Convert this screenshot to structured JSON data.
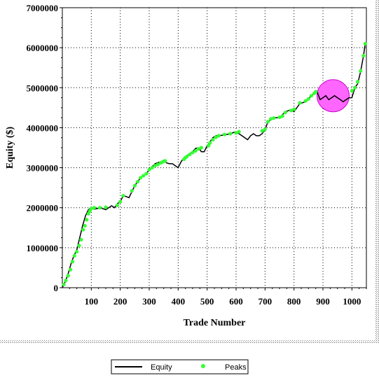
{
  "chart_data": {
    "type": "line",
    "title": "",
    "xlabel": "Trade Number",
    "ylabel": "Equity ($)",
    "xlim": [
      0,
      1050
    ],
    "ylim": [
      0,
      7000000
    ],
    "x_ticks": [
      100,
      200,
      300,
      400,
      500,
      600,
      700,
      800,
      900,
      1000
    ],
    "y_ticks": [
      0,
      1000000,
      2000000,
      3000000,
      4000000,
      5000000,
      6000000,
      7000000
    ],
    "x_tick_labels": [
      "100",
      "200",
      "300",
      "400",
      "500",
      "600",
      "700",
      "800",
      "900",
      "1000"
    ],
    "y_tick_labels": [
      "0",
      "1000000",
      "2000000",
      "3000000",
      "4000000",
      "5000000",
      "6000000",
      "7000000"
    ],
    "grid": true,
    "legend_position": "bottom-center",
    "series": [
      {
        "name": "Equity",
        "kind": "line",
        "color": "#000000",
        "x": [
          0,
          10,
          20,
          30,
          40,
          50,
          60,
          70,
          80,
          90,
          100,
          110,
          120,
          130,
          150,
          170,
          180,
          190,
          200,
          210,
          220,
          230,
          240,
          250,
          260,
          270,
          280,
          290,
          300,
          320,
          340,
          350,
          360,
          370,
          380,
          390,
          400,
          410,
          420,
          430,
          440,
          450,
          460,
          470,
          480,
          490,
          500,
          510,
          520,
          530,
          540,
          560,
          580,
          600,
          610,
          620,
          630,
          640,
          650,
          660,
          670,
          680,
          690,
          700,
          710,
          720,
          730,
          750,
          770,
          790,
          800,
          820,
          840,
          860,
          870,
          880,
          890,
          900,
          910,
          920,
          930,
          940,
          950,
          960,
          970,
          980,
          990,
          1000,
          1010,
          1020,
          1030,
          1040,
          1046
        ],
        "y": [
          0,
          150000,
          350000,
          600000,
          800000,
          950000,
          1250000,
          1550000,
          1800000,
          1950000,
          2000000,
          1960000,
          1980000,
          2000000,
          1950000,
          2050000,
          2000000,
          2100000,
          2150000,
          2300000,
          2280000,
          2250000,
          2400000,
          2550000,
          2650000,
          2750000,
          2800000,
          2850000,
          2950000,
          3100000,
          3150000,
          3170000,
          3120000,
          3100000,
          3100000,
          3050000,
          3000000,
          3150000,
          3250000,
          3300000,
          3350000,
          3400000,
          3480000,
          3500000,
          3400000,
          3400000,
          3550000,
          3650000,
          3750000,
          3800000,
          3800000,
          3820000,
          3850000,
          3900000,
          3850000,
          3800000,
          3750000,
          3700000,
          3800000,
          3850000,
          3800000,
          3800000,
          3850000,
          3950000,
          4150000,
          4200000,
          4250000,
          4250000,
          4400000,
          4450000,
          4400000,
          4600000,
          4650000,
          4800000,
          4850000,
          4900000,
          4700000,
          4750000,
          4800000,
          4700000,
          4750000,
          4800000,
          4750000,
          4700000,
          4650000,
          4700000,
          4750000,
          4750000,
          5000000,
          5100000,
          5400000,
          5800000,
          6100000
        ]
      },
      {
        "name": "Peaks",
        "kind": "points",
        "color": "#33ff33",
        "x": [
          5,
          12,
          20,
          28,
          35,
          42,
          50,
          58,
          65,
          72,
          78,
          84,
          90,
          95,
          100,
          110,
          130,
          150,
          190,
          200,
          210,
          240,
          250,
          260,
          270,
          280,
          290,
          300,
          310,
          320,
          330,
          340,
          345,
          350,
          355,
          420,
          425,
          430,
          440,
          450,
          460,
          470,
          480,
          505,
          510,
          520,
          530,
          540,
          560,
          580,
          600,
          610,
          690,
          700,
          710,
          720,
          730,
          750,
          760,
          770,
          790,
          800,
          820,
          840,
          850,
          860,
          870,
          875,
          1000,
          1010,
          1020,
          1030,
          1040,
          1046
        ],
        "y": [
          80000,
          180000,
          300000,
          450000,
          650000,
          800000,
          900000,
          1050000,
          1200000,
          1450000,
          1550000,
          1700000,
          1850000,
          1920000,
          1980000,
          2000000,
          2000000,
          2010000,
          2060000,
          2150000,
          2300000,
          2420000,
          2550000,
          2650000,
          2750000,
          2800000,
          2850000,
          2950000,
          3000000,
          3050000,
          3080000,
          3120000,
          3140000,
          3160000,
          3170000,
          3210000,
          3250000,
          3280000,
          3330000,
          3380000,
          3420000,
          3470000,
          3500000,
          3550000,
          3620000,
          3700000,
          3760000,
          3800000,
          3830000,
          3850000,
          3870000,
          3900000,
          3920000,
          3960000,
          4150000,
          4220000,
          4240000,
          4260000,
          4290000,
          4380000,
          4430000,
          4460000,
          4620000,
          4670000,
          4720000,
          4800000,
          4860000,
          4900000,
          4920000,
          5000000,
          5150000,
          5420000,
          5800000,
          6100000
        ]
      }
    ],
    "annotations": [
      {
        "kind": "circle-highlight",
        "center_x": 935,
        "center_y": 4800000,
        "fill": "#ff66ff",
        "stroke": "#cc00cc"
      }
    ],
    "legend": [
      "Equity",
      "Peaks"
    ]
  }
}
